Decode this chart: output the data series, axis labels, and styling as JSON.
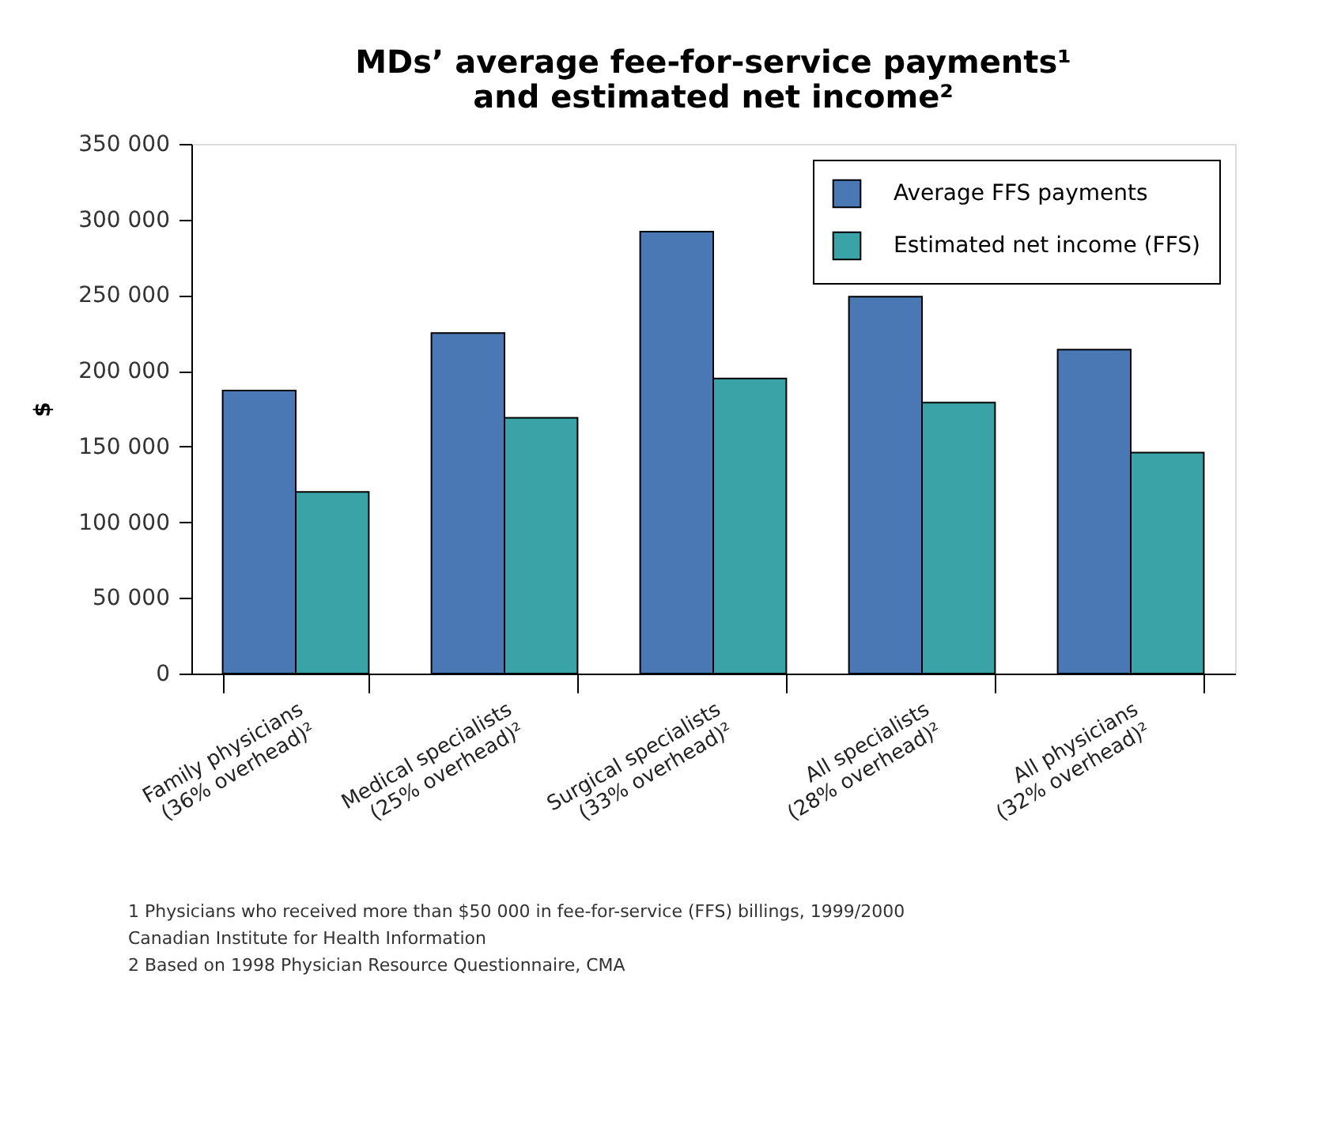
{
  "chart_data": {
    "type": "bar",
    "title": "MDs’ average fee-for-service payments¹\nand estimated net income²",
    "ylabel": "$",
    "categories": [
      "Family physicians\n(36% overhead)²",
      "Medical specialists\n(25% overhead)²",
      "Surgical specialists\n(33% overhead)²",
      "All specialists\n(28% overhead)²",
      "All physicians\n(32% overhead)²"
    ],
    "series": [
      {
        "name": "Average FFS payments",
        "color": "#4a78b5",
        "values": [
          187000,
          225000,
          292000,
          249000,
          214000
        ]
      },
      {
        "name": "Estimated net income (FFS)",
        "color": "#3aa3a8",
        "values": [
          120000,
          169000,
          195000,
          179000,
          146000
        ]
      }
    ],
    "ylim": [
      0,
      350000
    ],
    "yticks": [
      {
        "value": 0,
        "label": "0"
      },
      {
        "value": 50000,
        "label": "50 000"
      },
      {
        "value": 100000,
        "label": "100 000"
      },
      {
        "value": 150000,
        "label": "150 000"
      },
      {
        "value": 200000,
        "label": "200 000"
      },
      {
        "value": 250000,
        "label": "250 000"
      },
      {
        "value": 300000,
        "label": "300 000"
      },
      {
        "value": 350000,
        "label": "350 000"
      }
    ],
    "grid": false,
    "legend": "top right",
    "annotations": [
      "1 Physicians who received more than $50 000 in fee-for-service (FFS) billings, 1999/2000",
      "   Canadian Institute for Health Information",
      "2 Based on 1998 Physician Resource Questionnaire, CMA"
    ]
  }
}
